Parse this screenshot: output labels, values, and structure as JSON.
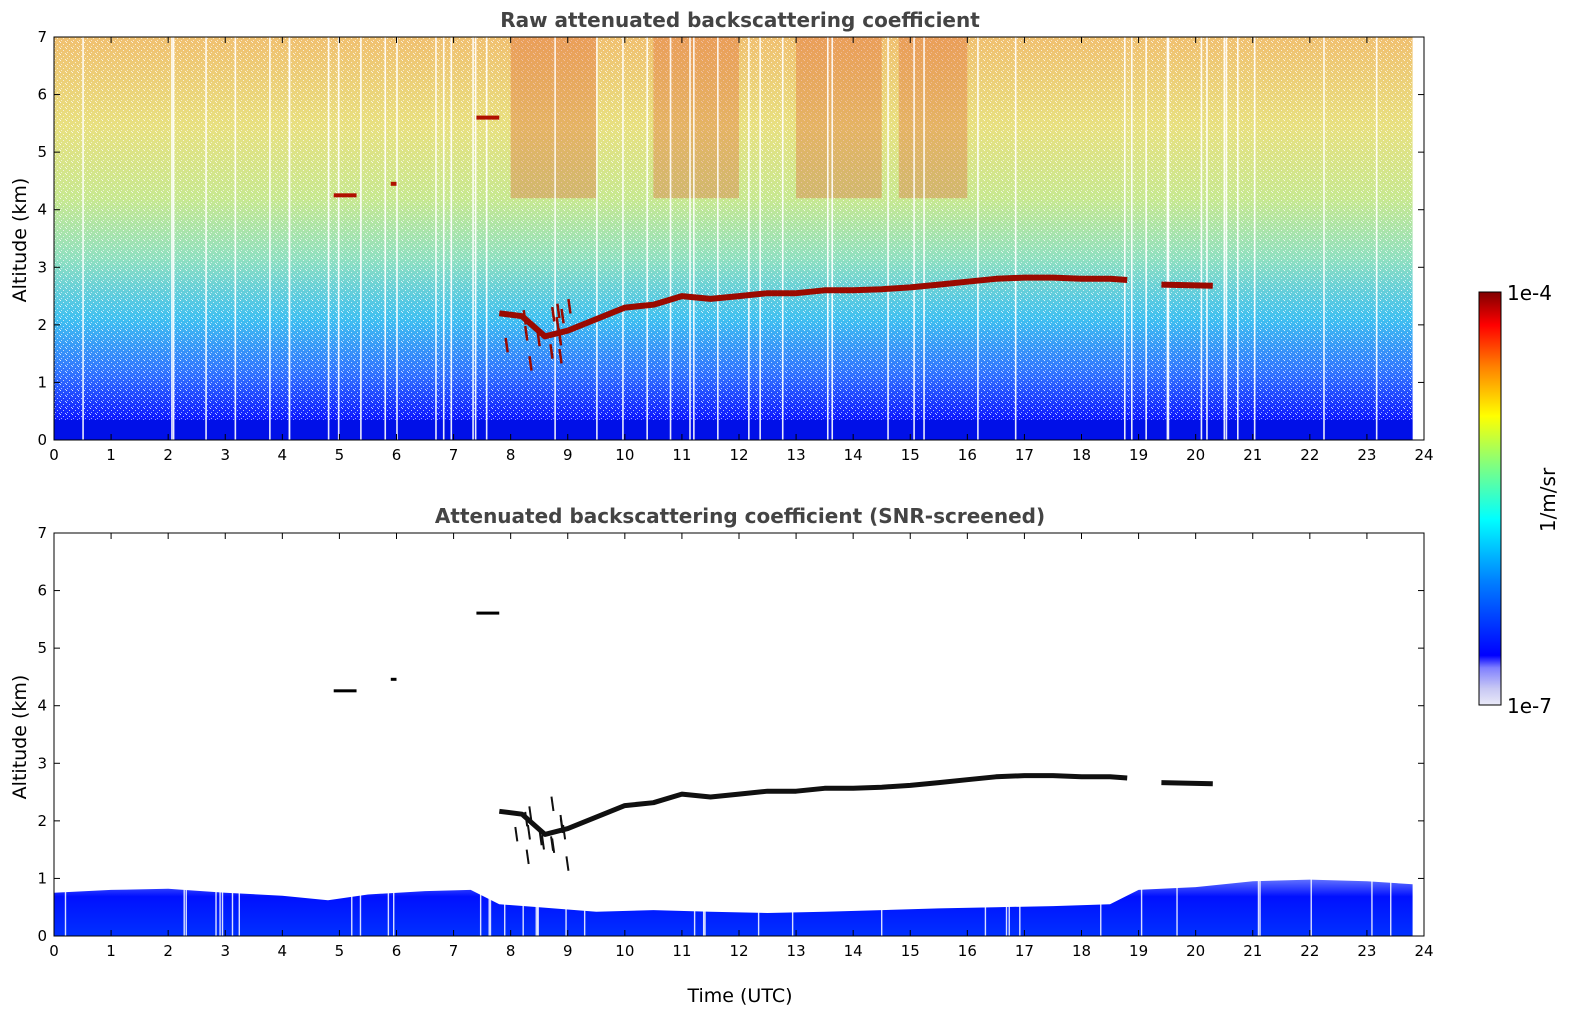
{
  "chart_data": [
    {
      "type": "heatmap",
      "title": "Raw attenuated backscattering coefficient",
      "xlabel": "",
      "ylabel": "Altitude (km)",
      "xlim": [
        0,
        24
      ],
      "ylim": [
        0,
        7
      ],
      "xticks": [
        "0",
        "1",
        "2",
        "3",
        "4",
        "5",
        "6",
        "7",
        "8",
        "9",
        "10",
        "11",
        "12",
        "13",
        "14",
        "15",
        "16",
        "17",
        "18",
        "19",
        "20",
        "21",
        "22",
        "23",
        "24"
      ],
      "yticks": [
        "0",
        "1",
        "2",
        "3",
        "4",
        "5",
        "6",
        "7"
      ],
      "layer_profile": {
        "time_utc": [
          7.8,
          8.2,
          8.6,
          9.0,
          9.5,
          10.0,
          10.5,
          11.0,
          11.5,
          12.0,
          12.5,
          13.0,
          13.5,
          14.0,
          14.5,
          15.0,
          15.5,
          16.0,
          16.5,
          17.0,
          17.5,
          18.0,
          18.5,
          18.8,
          19.4,
          20.3
        ],
        "altitude_km": [
          2.2,
          2.15,
          1.8,
          1.9,
          2.1,
          2.3,
          2.35,
          2.5,
          2.45,
          2.5,
          2.55,
          2.55,
          2.6,
          2.6,
          2.62,
          2.65,
          2.7,
          2.75,
          2.8,
          2.82,
          2.82,
          2.8,
          2.8,
          2.78,
          2.7,
          2.68
        ]
      },
      "elevated_features": [
        {
          "time_utc": [
            4.9,
            5.3
          ],
          "altitude_km": 4.25
        },
        {
          "time_utc": [
            5.9,
            6.0
          ],
          "altitude_km": 4.45
        },
        {
          "time_utc": [
            7.4,
            7.8
          ],
          "altitude_km": 5.6
        }
      ]
    },
    {
      "type": "heatmap",
      "title": "Attenuated backscattering coefficient (SNR-screened)",
      "xlabel": "Time (UTC)",
      "ylabel": "Altitude (km)",
      "xlim": [
        0,
        24
      ],
      "ylim": [
        0,
        7
      ],
      "xticks": [
        "0",
        "1",
        "2",
        "3",
        "4",
        "5",
        "6",
        "7",
        "8",
        "9",
        "10",
        "11",
        "12",
        "13",
        "14",
        "15",
        "16",
        "17",
        "18",
        "19",
        "20",
        "21",
        "22",
        "23",
        "24"
      ],
      "yticks": [
        "0",
        "1",
        "2",
        "3",
        "4",
        "5",
        "6",
        "7"
      ],
      "boundary_layer": {
        "time_utc": [
          0,
          1,
          2,
          3,
          4,
          4.8,
          5.5,
          6.5,
          7.3,
          7.8,
          8.5,
          9.5,
          10.5,
          11.5,
          12.5,
          13.5,
          14.5,
          15.5,
          16.5,
          17.5,
          18.5,
          19.0,
          20.0,
          21.0,
          22.0,
          23.0,
          23.8
        ],
        "top_km": [
          0.75,
          0.8,
          0.82,
          0.75,
          0.7,
          0.62,
          0.72,
          0.78,
          0.8,
          0.55,
          0.5,
          0.42,
          0.45,
          0.42,
          0.4,
          0.42,
          0.45,
          0.48,
          0.5,
          0.52,
          0.55,
          0.8,
          0.85,
          0.95,
          0.98,
          0.95,
          0.9
        ]
      }
    }
  ],
  "colorbar": {
    "label": "1/m/sr",
    "max_label": "1e-4",
    "min_label": "1e-7",
    "colormap": "jet",
    "scale": "log",
    "colors": [
      "#eaeaf8",
      "#c8c8f4",
      "#0000ff",
      "#0080ff",
      "#00ffff",
      "#80ff80",
      "#ffff00",
      "#ff8000",
      "#ff0000",
      "#800000"
    ]
  }
}
